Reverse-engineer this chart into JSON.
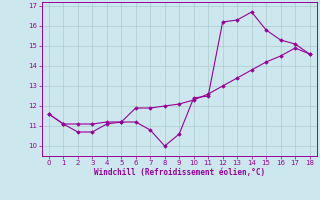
{
  "xlabel": "Windchill (Refroidissement éolien,°C)",
  "x_values": [
    0,
    1,
    2,
    3,
    4,
    5,
    6,
    7,
    8,
    9,
    10,
    11,
    12,
    13,
    14,
    15,
    16,
    17,
    18
  ],
  "y_values": [
    11.6,
    11.1,
    10.7,
    10.7,
    11.1,
    11.2,
    11.2,
    10.8,
    10.0,
    10.6,
    12.4,
    12.5,
    16.2,
    16.3,
    16.7,
    15.8,
    15.3,
    15.1,
    14.6
  ],
  "y2_values": [
    11.6,
    11.1,
    11.1,
    11.1,
    11.2,
    11.2,
    11.9,
    11.9,
    12.0,
    12.1,
    12.3,
    12.6,
    13.0,
    13.4,
    13.8,
    14.2,
    14.5,
    14.9,
    14.6
  ],
  "line_color": "#990099",
  "bg_color": "#cce8ee",
  "grid_color": "#aacccc",
  "ylim": [
    9.5,
    17.2
  ],
  "xlim": [
    -0.5,
    18.5
  ],
  "yticks": [
    10,
    11,
    12,
    13,
    14,
    15,
    16,
    17
  ],
  "xticks": [
    0,
    1,
    2,
    3,
    4,
    5,
    6,
    7,
    8,
    9,
    10,
    11,
    12,
    13,
    14,
    15,
    16,
    17,
    18
  ]
}
